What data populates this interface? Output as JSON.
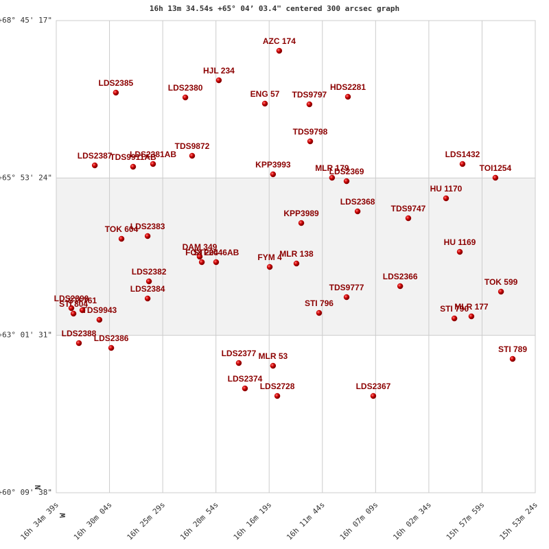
{
  "chart_data": {
    "type": "scatter",
    "title": "16h 13m 34.54s +65° 04’ 03.4\" centered 300 arcsec graph",
    "north_label": "N",
    "west_label": "W",
    "xlim": [
      59679,
      57204
    ],
    "ylim": [
      216578,
      247517
    ],
    "xticks": [
      {
        "value": 59679,
        "label": "16h 34m 39s"
      },
      {
        "value": 59404,
        "label": "16h 30m 04s"
      },
      {
        "value": 59129,
        "label": "16h 25m 29s"
      },
      {
        "value": 58854,
        "label": "16h 20m 54s"
      },
      {
        "value": 58579,
        "label": "16h 16m 19s"
      },
      {
        "value": 58304,
        "label": "16h 11m 44s"
      },
      {
        "value": 58029,
        "label": "16h 07m 09s"
      },
      {
        "value": 57754,
        "label": "16h 02m 34s"
      },
      {
        "value": 57479,
        "label": "15h 57m 59s"
      },
      {
        "value": 57204,
        "label": "15h 53m 24s"
      }
    ],
    "yticks": [
      {
        "value": 216578,
        "label": "+60° 09' 38\""
      },
      {
        "value": 226891,
        "label": "+63° 01' 31\""
      },
      {
        "value": 237204,
        "label": "+65° 53' 24\""
      },
      {
        "value": 247517,
        "label": "+68° 45' 17\""
      }
    ],
    "grid": true,
    "color": "#c00000",
    "labels": [
      "AZC 174",
      "HJL 234",
      "LDS2385",
      "LDS2380",
      "ENG  57",
      "TDS9797",
      "HDS2281",
      "TDS9798",
      "TDS9872",
      "LDS2387",
      "TDS9911AB",
      "LDS2381AB",
      "KPP3993",
      "MLR 179",
      "LDS2369",
      "LDS1432",
      "TOI1254",
      "HU 1170",
      "LDS2368",
      "TDS9747",
      "KPP3989",
      "TOK 604",
      "LDS2383",
      "DAM 349",
      "FOX 204",
      "STF2046AB",
      "FYM 4",
      "MLR 138",
      "HU 1169",
      "LDS2382",
      "LDS2384",
      "TDS9777",
      "LDS2366",
      "TOK 599",
      "LDS2390",
      "STI 804",
      "STI 761",
      "TDS9943",
      "STI 796",
      "STI 790",
      "MLR 177",
      "LDS2388",
      "LDS2386",
      "STI 789",
      "LDS2377",
      "MLR  53",
      "LDS2374",
      "LDS2728",
      "LDS2367"
    ],
    "x": [
      58527,
      58839,
      59371,
      59012,
      58601,
      58371,
      58172,
      58367,
      58977,
      59480,
      59282,
      59179,
      58559,
      58254,
      58179,
      57580,
      57410,
      57665,
      58122,
      57860,
      58413,
      59342,
      59207,
      58938,
      58927,
      58853,
      58576,
      58438,
      57594,
      59200,
      59207,
      58179,
      57902,
      57381,
      59601,
      59590,
      59544,
      59456,
      58321,
      57622,
      57534,
      59562,
      59395,
      57321,
      58736,
      58559,
      58704,
      58537,
      58041
    ],
    "values": [
      245539,
      243605,
      242796,
      242481,
      242076,
      242031,
      242526,
      239603,
      238658,
      238029,
      237939,
      238119,
      237444,
      237219,
      236994,
      238119,
      237219,
      235870,
      235016,
      234566,
      234251,
      233217,
      233397,
      232048,
      231688,
      231688,
      231373,
      231598,
      232362,
      230429,
      229305,
      229394,
      230114,
      229754,
      228675,
      228315,
      228540,
      227910,
      228360,
      228000,
      228135,
      226381,
      226067,
      225347,
      225077,
      224897,
      223413,
      222919,
      222919
    ]
  }
}
